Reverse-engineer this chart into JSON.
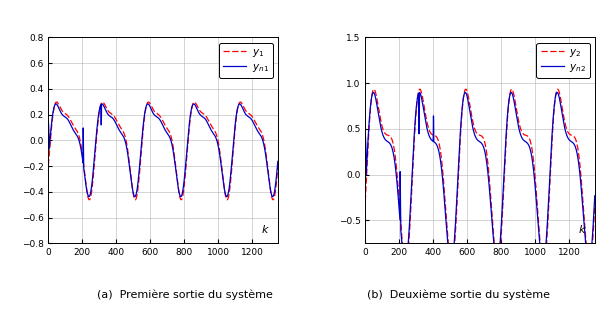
{
  "subplot1": {
    "ylim": [
      -0.8,
      0.8
    ],
    "yticks": [
      -0.8,
      -0.6,
      -0.4,
      -0.2,
      0.0,
      0.2,
      0.4,
      0.6,
      0.8
    ],
    "xlim": [
      0,
      1350
    ],
    "xticks": [
      0,
      200,
      400,
      600,
      800,
      1000,
      1200
    ],
    "caption": "(a)  Première sortie du système",
    "legend1": "$y_1$",
    "legend2": "$y_{n1}$"
  },
  "subplot2": {
    "ylim": [
      -0.75,
      1.5
    ],
    "yticks": [
      -0.5,
      0.0,
      0.5,
      1.0,
      1.5
    ],
    "xlim": [
      0,
      1350
    ],
    "xticks": [
      0,
      200,
      400,
      600,
      800,
      1000,
      1200
    ],
    "caption": "(b)  Deuxième sortie du système",
    "legend1": "$y_2$",
    "legend2": "$y_{n2}$"
  },
  "line_dashed_color": "#FF0000",
  "line_solid_color": "#0000CC",
  "background_color": "#FFFFFF",
  "grid_color": "#AAAAAA",
  "figsize": [
    6.04,
    3.12
  ],
  "dpi": 100
}
